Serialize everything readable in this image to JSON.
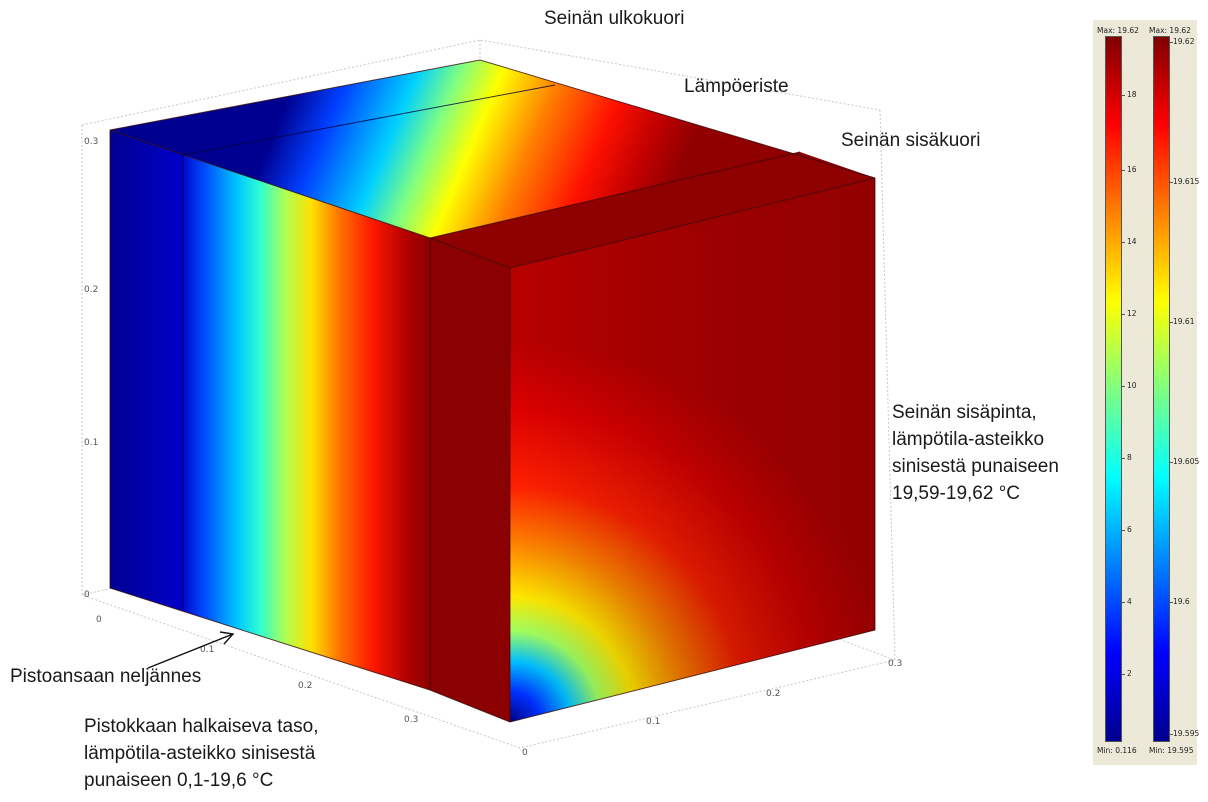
{
  "labels": {
    "outer_shell": "Seinän ulkokuori",
    "insulation": "Lämpöeriste",
    "inner_shell": "Seinän sisäkuori",
    "inner_surface": [
      "Seinän sisäpinta,",
      "lämpötila-asteikko",
      "sinisestä punaiseen",
      "19,59-19,62 °C"
    ],
    "socket_quarter": "Pistoansaan neljännes",
    "cutting_plane": [
      "Pistokkaan halkaiseva taso,",
      "lämpötila-asteikko sinisestä",
      "punaiseen 0,1-19,6 °C"
    ]
  },
  "axes": {
    "vertical_ticks": [
      "0",
      "0.1",
      "0.2",
      "0.3"
    ],
    "depth_ticks": [
      "0",
      "0.1",
      "0.2",
      "0.3"
    ],
    "width_ticks": [
      "0",
      "0.1",
      "0.2",
      "0.3"
    ]
  },
  "colorbars": [
    {
      "max_label": "Max: 19.62",
      "min_label": "Min: 0.116",
      "ticks": [
        "18",
        "16",
        "14",
        "12",
        "10",
        "8",
        "6",
        "4",
        "2"
      ]
    },
    {
      "max_label": "Max: 19.62",
      "min_label": "Min: 19.595",
      "ticks": [
        "19.62",
        "19.615",
        "19.61",
        "19.605",
        "19.6",
        "19.595"
      ]
    }
  ],
  "colors": {
    "dark_blue": "#000080",
    "dark_red": "#8b0000",
    "red": "#e00000",
    "legend_bg": "#ece9d8"
  }
}
